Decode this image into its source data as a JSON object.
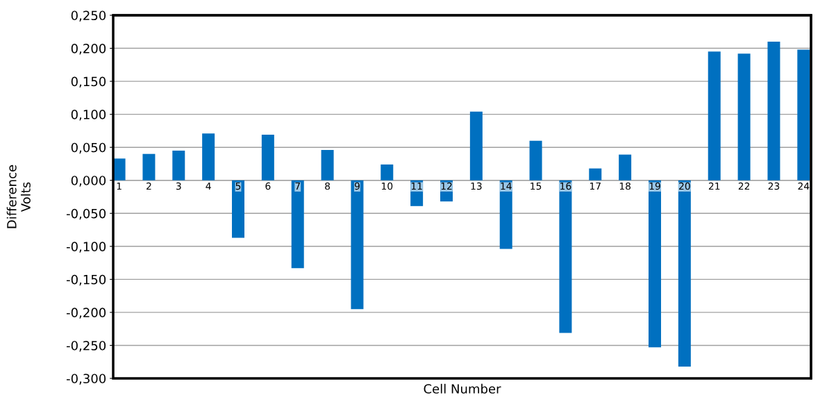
{
  "chart_data": {
    "type": "bar",
    "xlabel": "Cell Number",
    "ylabel": "Difference\nVolts",
    "categories": [
      "1",
      "2",
      "3",
      "4",
      "5",
      "6",
      "7",
      "8",
      "9",
      "10",
      "11",
      "12",
      "13",
      "14",
      "15",
      "16",
      "17",
      "18",
      "19",
      "20",
      "21",
      "22",
      "23",
      "24"
    ],
    "values": [
      0.033,
      0.04,
      0.045,
      0.071,
      -0.087,
      0.069,
      -0.133,
      0.046,
      -0.195,
      0.024,
      -0.039,
      -0.032,
      0.104,
      -0.104,
      0.06,
      -0.231,
      0.018,
      0.039,
      -0.253,
      -0.282,
      0.195,
      0.192,
      0.21,
      0.198
    ],
    "color": "#0070c0",
    "ylim": [
      -0.3,
      0.25
    ],
    "yticks": [
      {
        "value": -0.3,
        "label": "-0,300"
      },
      {
        "value": -0.25,
        "label": "-0,250"
      },
      {
        "value": -0.2,
        "label": "-0,200"
      },
      {
        "value": -0.15,
        "label": "-0,150"
      },
      {
        "value": -0.1,
        "label": "-0,100"
      },
      {
        "value": -0.05,
        "label": "-0,050"
      },
      {
        "value": 0,
        "label": "0,000"
      },
      {
        "value": 0.05,
        "label": "0,050"
      },
      {
        "value": 0.1,
        "label": "0,100"
      },
      {
        "value": 0.15,
        "label": "0,150"
      },
      {
        "value": 0.2,
        "label": "0,200"
      },
      {
        "value": 0.25,
        "label": "0,250"
      }
    ],
    "grid": "y"
  }
}
